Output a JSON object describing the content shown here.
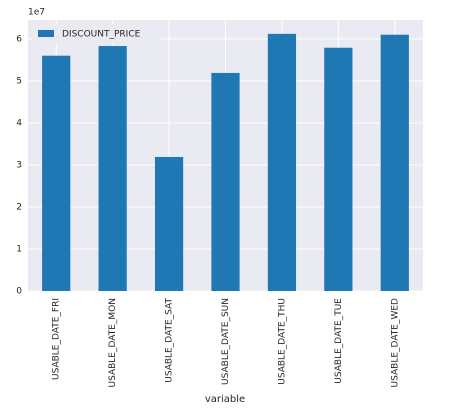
{
  "chart_data": {
    "type": "bar",
    "offset_label": "1e7",
    "xlabel": "variable",
    "categories": [
      "USABLE_DATE_FRI",
      "USABLE_DATE_MON",
      "USABLE_DATE_SAT",
      "USABLE_DATE_SUN",
      "USABLE_DATE_THU",
      "USABLE_DATE_TUE",
      "USABLE_DATE_WED"
    ],
    "series": [
      {
        "name": "DISCOUNT_PRICE",
        "color": "#1f77b4",
        "values": [
          5.6,
          5.83,
          3.19,
          5.19,
          6.12,
          5.79,
          6.1
        ]
      }
    ],
    "ylim": [
      0,
      6.45
    ],
    "yticks": [
      0,
      1,
      2,
      3,
      4,
      5,
      6
    ],
    "grid": true,
    "legend": "upper-left"
  }
}
